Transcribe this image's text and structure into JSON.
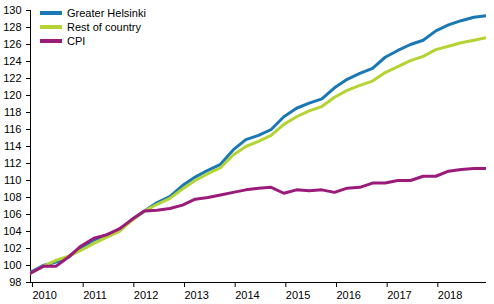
{
  "chart_data": {
    "type": "line",
    "x": [
      2010,
      2010.25,
      2010.5,
      2010.75,
      2011,
      2011.25,
      2011.5,
      2011.75,
      2012,
      2012.25,
      2012.5,
      2012.75,
      2013,
      2013.25,
      2013.5,
      2013.75,
      2014,
      2014.25,
      2014.5,
      2014.75,
      2015,
      2015.25,
      2015.5,
      2015.75,
      2016,
      2016.25,
      2016.5,
      2016.75,
      2017,
      2017.25,
      2017.5,
      2017.75,
      2018,
      2018.25,
      2018.5,
      2018.75,
      2019
    ],
    "series": [
      {
        "name": "Greater Helsinki",
        "color": "#1a78b4",
        "values": [
          99.2,
          100.0,
          100.4,
          101.0,
          102.0,
          103.0,
          103.6,
          104.1,
          105.4,
          106.4,
          107.4,
          108.1,
          109.4,
          110.4,
          111.2,
          111.9,
          113.6,
          114.8,
          115.3,
          116.0,
          117.5,
          118.5,
          119.1,
          119.6,
          120.9,
          121.9,
          122.6,
          123.2,
          124.5,
          125.3,
          126.0,
          126.5,
          127.6,
          128.3,
          128.8,
          129.2,
          129.4
        ]
      },
      {
        "name": "Rest of country",
        "color": "#b4d334",
        "values": [
          99.1,
          99.9,
          100.6,
          101.1,
          101.8,
          102.6,
          103.3,
          104.0,
          105.3,
          106.4,
          107.2,
          107.9,
          109.0,
          110.0,
          110.8,
          111.5,
          113.0,
          114.0,
          114.6,
          115.3,
          116.6,
          117.5,
          118.2,
          118.7,
          119.8,
          120.6,
          121.2,
          121.7,
          122.7,
          123.4,
          124.1,
          124.6,
          125.4,
          125.8,
          126.2,
          126.5,
          126.8
        ]
      },
      {
        "name": "CPI",
        "color": "#9b1b7b",
        "values": [
          99.1,
          99.9,
          99.9,
          101.0,
          102.3,
          103.2,
          103.6,
          104.3,
          105.4,
          106.4,
          106.5,
          106.7,
          107.1,
          107.8,
          108.0,
          108.3,
          108.6,
          108.9,
          109.1,
          109.2,
          108.5,
          108.9,
          108.8,
          108.9,
          108.6,
          109.1,
          109.2,
          109.7,
          109.7,
          110.0,
          110.0,
          110.5,
          110.5,
          111.1,
          111.3,
          111.4,
          111.4
        ]
      }
    ],
    "xlim": [
      2010,
      2019
    ],
    "xticks": [
      2010,
      2011,
      2012,
      2013,
      2014,
      2015,
      2016,
      2017,
      2018
    ],
    "ylim": [
      98,
      130
    ],
    "yticks": [
      98,
      100,
      102,
      104,
      106,
      108,
      110,
      112,
      114,
      116,
      118,
      120,
      122,
      124,
      126,
      128,
      130
    ],
    "grid": false,
    "legend": "top-left"
  }
}
